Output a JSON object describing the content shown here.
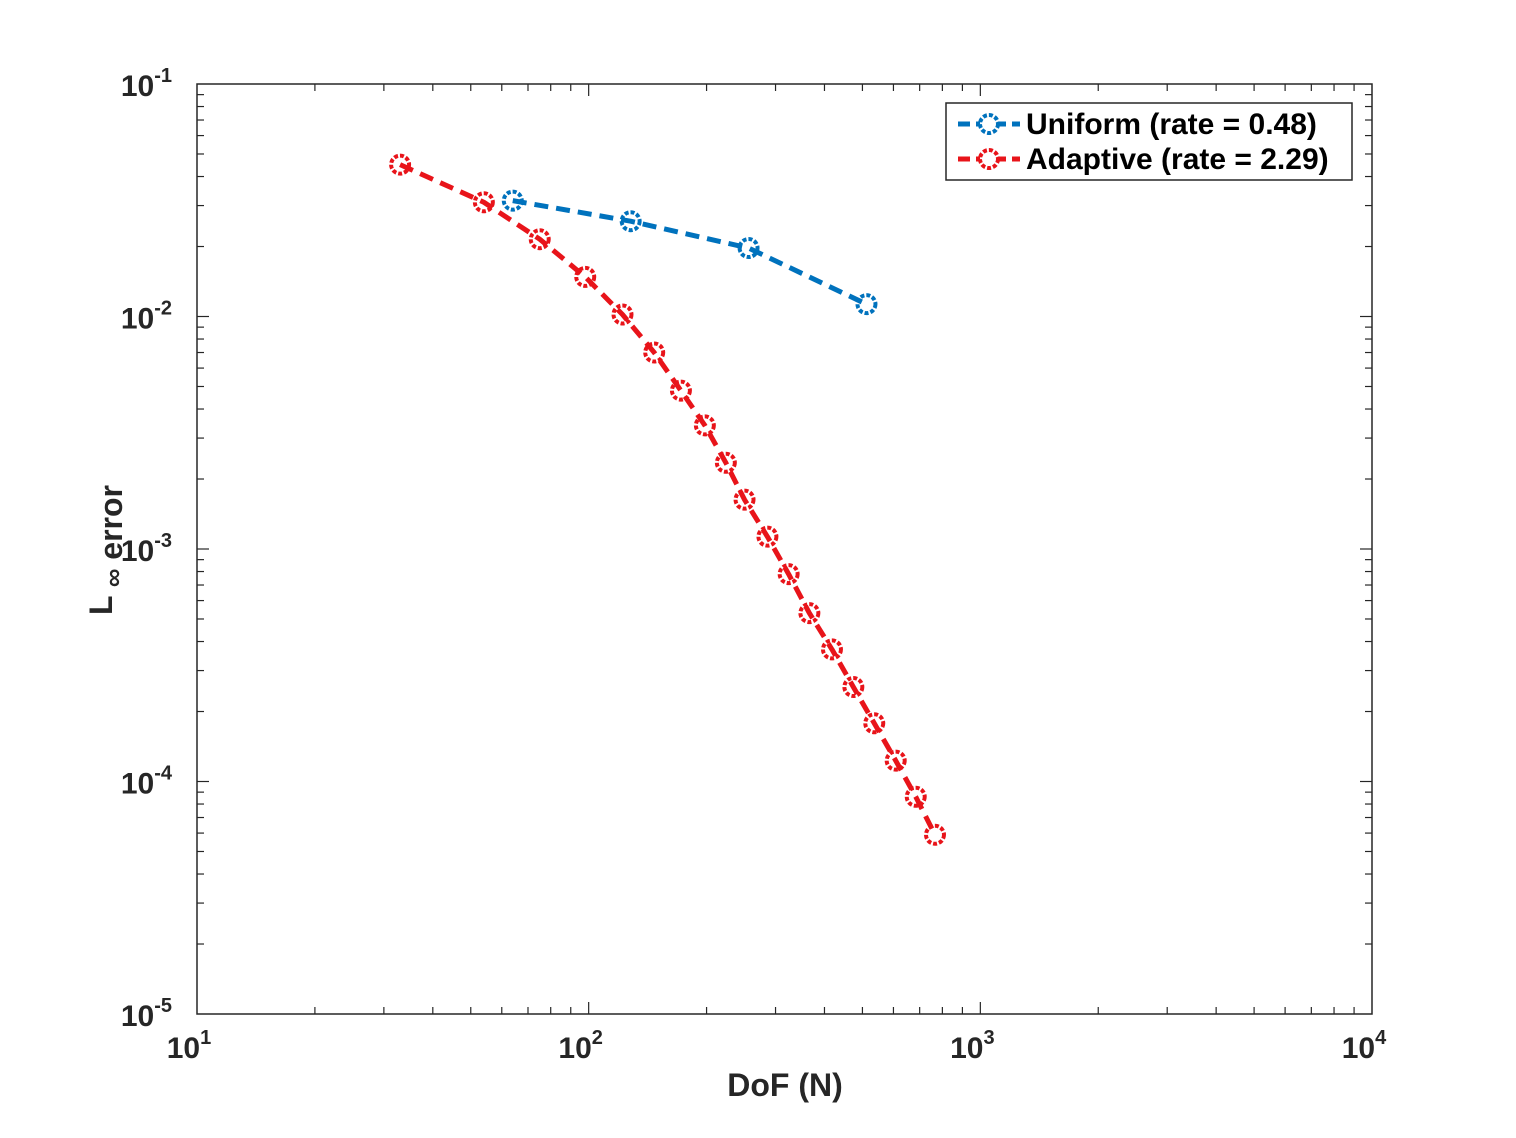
{
  "chart_data": {
    "type": "line",
    "xscale": "log",
    "yscale": "log",
    "xlim": [
      10,
      10000
    ],
    "ylim": [
      1e-05,
      0.1
    ],
    "xlabel": "DoF (N)",
    "ylabel": {
      "main": "L",
      "subscript": "∞",
      "suffix": "error"
    },
    "x_ticks": [
      {
        "base": "10",
        "exp": "1"
      },
      {
        "base": "10",
        "exp": "2"
      },
      {
        "base": "10",
        "exp": "3"
      },
      {
        "base": "10",
        "exp": "4"
      }
    ],
    "y_ticks": [
      {
        "base": "10",
        "exp": "-5"
      },
      {
        "base": "10",
        "exp": "-4"
      },
      {
        "base": "10",
        "exp": "-3"
      },
      {
        "base": "10",
        "exp": "-2"
      },
      {
        "base": "10",
        "exp": "-1"
      }
    ],
    "grid": false,
    "legend_position": "top-right",
    "series": [
      {
        "name": "Uniform (rate = 0.48)",
        "color": "#0072BD",
        "line_style": "dashed",
        "marker": "circle",
        "x": [
          64,
          128,
          256,
          512
        ],
        "y": [
          0.0315,
          0.0257,
          0.0197,
          0.0113
        ]
      },
      {
        "name": "Adaptive (rate = 2.29)",
        "color": "#E8141A",
        "line_style": "dashed",
        "marker": "circle",
        "x": [
          33,
          54,
          75,
          98,
          122,
          147,
          172,
          198,
          224,
          250,
          286,
          324,
          366,
          418,
          474,
          536,
          608,
          684,
          766
        ],
        "y": [
          0.045,
          0.031,
          0.0215,
          0.0148,
          0.0102,
          0.007,
          0.0048,
          0.0034,
          0.00235,
          0.00163,
          0.00113,
          0.00078,
          0.00053,
          0.00037,
          0.000255,
          0.000178,
          0.000123,
          8.6e-05,
          5.9e-05
        ]
      }
    ]
  }
}
